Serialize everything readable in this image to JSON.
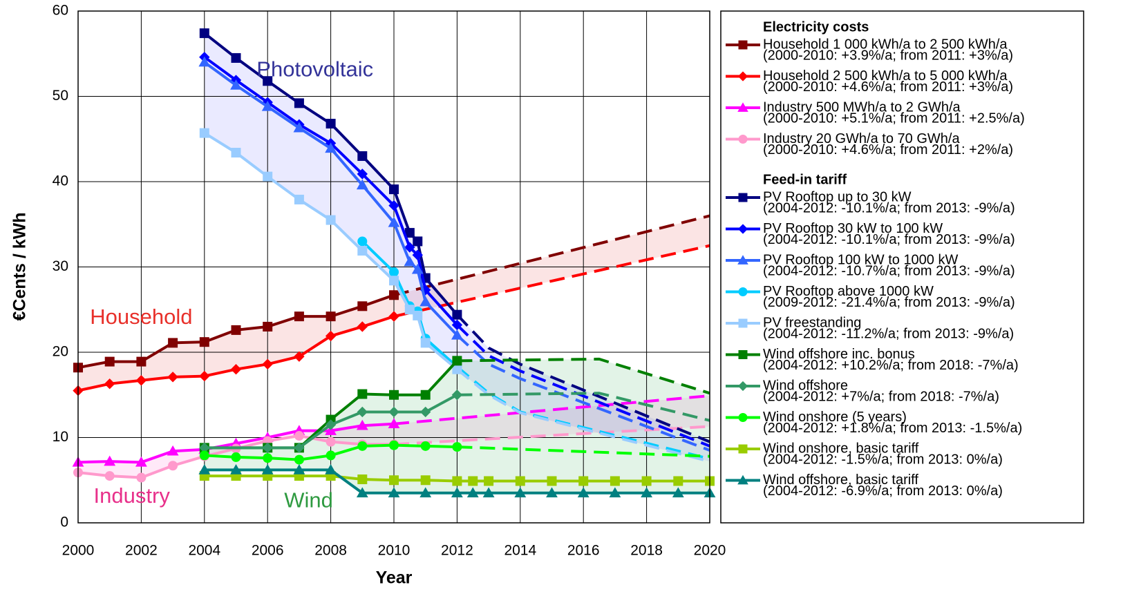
{
  "chart_data": {
    "type": "line",
    "x_label": "Year",
    "y_label": "€Cents / kWh",
    "xlim": [
      2000,
      2020
    ],
    "xticks": [
      2000,
      2002,
      2004,
      2006,
      2008,
      2010,
      2012,
      2014,
      2016,
      2018,
      2020
    ],
    "ylim": [
      0,
      60
    ],
    "yticks": [
      0,
      10,
      20,
      30,
      40,
      50,
      60
    ],
    "grid": true,
    "legend_position": "right",
    "annotations": [
      {
        "text": "Photovoltaic",
        "x": 2007.5,
        "y": 53,
        "color": "#333399"
      },
      {
        "text": "Household",
        "x": 2002,
        "y": 24,
        "color": "#e8302a"
      },
      {
        "text": "Industry",
        "x": 2001.7,
        "y": 3,
        "color": "#e8308a"
      },
      {
        "text": "Wind",
        "x": 2007.3,
        "y": 2.5,
        "color": "#2e9a40"
      }
    ],
    "bands": [
      {
        "series": [
          0,
          1
        ],
        "color": "#e04040"
      },
      {
        "series": [
          2,
          3
        ],
        "color": "#ff66cc"
      },
      {
        "series": [
          4,
          8
        ],
        "color": "#6a6aff"
      },
      {
        "series": [
          9,
          13
        ],
        "color": "#33aa55"
      }
    ],
    "legend_groups": [
      {
        "title": "Electricity costs",
        "series": [
          0,
          1,
          2,
          3
        ]
      },
      {
        "title": "Feed-in tariff",
        "series": [
          4,
          5,
          6,
          7,
          8,
          9,
          10,
          11,
          12,
          13
        ]
      }
    ],
    "series": [
      {
        "name": "Household 1 000 kWh/a to 2 500 kWh/a",
        "detail": "(2000-2010: +3.9%/a; from 2011: +3%/a)",
        "color": "#800000",
        "marker": "square",
        "dash_from": 2010,
        "x": [
          2000,
          2001,
          2002,
          2003,
          2004,
          2005,
          2006,
          2007,
          2008,
          2009,
          2010,
          2020
        ],
        "values": [
          18.2,
          18.9,
          18.9,
          21.1,
          21.2,
          22.6,
          23.0,
          24.2,
          24.2,
          25.4,
          26.7,
          36.0
        ]
      },
      {
        "name": "Household 2 500 kWh/a to 5 000 kWh/a",
        "detail": "(2000-2010: +4.6%/a; from 2011: +3%/a)",
        "color": "#ff0000",
        "marker": "diamond",
        "dash_from": 2010,
        "x": [
          2000,
          2001,
          2002,
          2003,
          2004,
          2005,
          2006,
          2007,
          2008,
          2009,
          2010,
          2020
        ],
        "values": [
          15.5,
          16.3,
          16.7,
          17.1,
          17.2,
          18.0,
          18.6,
          19.5,
          21.9,
          23.0,
          24.2,
          32.5
        ]
      },
      {
        "name": "Industry 500 MWh/a to 2 GWh/a",
        "detail": "(2000-2010: +5.1%/a; from 2011: +2.5%/a)",
        "color": "#ff00ff",
        "marker": "triangle",
        "dash_from": 2010,
        "x": [
          2000,
          2001,
          2002,
          2003,
          2004,
          2005,
          2006,
          2007,
          2008,
          2009,
          2010,
          2020
        ],
        "values": [
          7.1,
          7.2,
          7.1,
          8.4,
          8.6,
          9.3,
          10.0,
          10.8,
          10.8,
          11.4,
          11.6,
          14.9
        ]
      },
      {
        "name": "Industry 20 GWh/a to 70 GWh/a",
        "detail": "(2000-2010: +4.6%/a; from 2011: +2%/a)",
        "color": "#ff99cc",
        "marker": "circle",
        "dash_from": 2010,
        "x": [
          2000,
          2001,
          2002,
          2003,
          2004,
          2005,
          2006,
          2007,
          2008,
          2009,
          2010,
          2020
        ],
        "values": [
          5.9,
          5.5,
          5.3,
          6.7,
          7.8,
          8.7,
          9.6,
          10.2,
          9.5,
          9.2,
          9.2,
          11.3
        ]
      },
      {
        "name": "PV Rooftop up to 30 kW",
        "detail": "(2004-2012: -10.1%/a; from 2013: -9%/a)",
        "color": "#000080",
        "marker": "square",
        "dash_from": 2012,
        "x": [
          2004,
          2005,
          2006,
          2007,
          2008,
          2009,
          2010,
          2010.5,
          2010.75,
          2011,
          2012,
          2013,
          2014,
          2020
        ],
        "values": [
          57.4,
          54.5,
          51.8,
          49.2,
          46.8,
          43.0,
          39.1,
          34.0,
          33.0,
          28.7,
          24.4,
          20.5,
          18.6,
          9.5
        ]
      },
      {
        "name": "PV Rooftop 30 kW to 100 kW",
        "detail": "(2004-2012: -10.1%/a; from 2013: -9%/a)",
        "color": "#0000ff",
        "marker": "diamond",
        "dash_from": 2012,
        "x": [
          2004,
          2005,
          2006,
          2007,
          2008,
          2009,
          2010,
          2010.5,
          2010.75,
          2011,
          2012,
          2013,
          2014,
          2020
        ],
        "values": [
          54.6,
          51.9,
          49.3,
          46.7,
          44.5,
          40.9,
          37.2,
          32.3,
          31.4,
          27.3,
          23.2,
          19.6,
          17.8,
          9.0
        ]
      },
      {
        "name": "PV Rooftop 100 kW to 1000 kW",
        "detail": "(2004-2012: -10.7%/a; from 2013: -9%/a)",
        "color": "#3366ff",
        "marker": "triangle",
        "dash_from": 2012,
        "x": [
          2004,
          2005,
          2006,
          2007,
          2008,
          2009,
          2010,
          2010.5,
          2010.75,
          2011,
          2012,
          2013,
          2014,
          2020
        ],
        "values": [
          54.0,
          51.3,
          48.8,
          46.3,
          43.9,
          39.6,
          35.2,
          30.6,
          29.7,
          25.9,
          22.0,
          18.6,
          16.9,
          8.5
        ]
      },
      {
        "name": "PV Rooftop above 1000 kW",
        "detail": "(2009-2012: -21.4%/a; from 2013: -9%/a)",
        "color": "#00ccff",
        "marker": "circle",
        "dash_from": 2012,
        "x": [
          2009,
          2010,
          2010.5,
          2010.75,
          2011,
          2012,
          2013,
          2014,
          2020
        ],
        "values": [
          33.0,
          29.4,
          25.4,
          24.8,
          21.6,
          18.3,
          15.2,
          13.0,
          7.5
        ]
      },
      {
        "name": "PV freestanding",
        "detail": "(2004-2012: -11.2%/a; from 2013: -9%/a)",
        "color": "#99ccff",
        "marker": "square",
        "dash_from": 2012,
        "x": [
          2004,
          2005,
          2006,
          2007,
          2008,
          2009,
          2010,
          2010.5,
          2010.75,
          2011,
          2012,
          2013,
          2014,
          2020
        ],
        "values": [
          45.7,
          43.4,
          40.6,
          37.9,
          35.5,
          31.9,
          28.4,
          25.0,
          24.3,
          21.1,
          18.0,
          15.0,
          12.9,
          7.2
        ]
      },
      {
        "name": "Wind offshore inc. bonus",
        "detail": "(2004-2012: +10.2%/a; from 2018: -7%/a)",
        "color": "#008000",
        "marker": "square",
        "dash_from": 2012,
        "x": [
          2004,
          2006,
          2007,
          2008,
          2009,
          2010,
          2011,
          2012,
          2016.5,
          2020
        ],
        "values": [
          8.8,
          8.8,
          8.8,
          12.1,
          15.1,
          15.0,
          15.0,
          19.0,
          19.2,
          15.2
        ]
      },
      {
        "name": "Wind offshore",
        "detail": "(2004-2012: +7%/a; from 2018: -7%/a)",
        "color": "#339966",
        "marker": "diamond",
        "dash_from": 2012,
        "x": [
          2004,
          2006,
          2007,
          2008,
          2009,
          2010,
          2011,
          2012,
          2016.5,
          2020
        ],
        "values": [
          8.8,
          8.8,
          8.8,
          11.5,
          13.0,
          13.0,
          13.0,
          15.0,
          15.2,
          12.0
        ]
      },
      {
        "name": "Wind onshore (5 years)",
        "detail": "(2004-2012: +1.8%/a; from 2013: -1.5%/a)",
        "color": "#00ff00",
        "marker": "circle",
        "dash_from": 2012,
        "x": [
          2004,
          2005,
          2006,
          2007,
          2008,
          2009,
          2010,
          2011,
          2012,
          2020
        ],
        "values": [
          7.9,
          7.7,
          7.6,
          7.4,
          7.9,
          9.0,
          9.1,
          9.0,
          8.9,
          7.8
        ]
      },
      {
        "name": "Wind onshore, basic tariff",
        "detail": "(2004-2012: -1.5%/a; from 2013: 0%/a)",
        "color": "#99cc00",
        "marker": "square",
        "x": [
          2004,
          2005,
          2006,
          2007,
          2008,
          2009,
          2010,
          2011,
          2012,
          2012.5,
          2013,
          2014,
          2015,
          2016,
          2017,
          2018,
          2019,
          2020
        ],
        "values": [
          5.5,
          5.5,
          5.5,
          5.5,
          5.5,
          5.1,
          5.0,
          5.0,
          4.9,
          4.9,
          4.9,
          4.9,
          4.9,
          4.9,
          4.9,
          4.9,
          4.9,
          4.9
        ]
      },
      {
        "name": "Wind offshore, basic tariff",
        "detail": "(2004-2012: -6.9%/a; from 2013: 0%/a)",
        "color": "#008080",
        "marker": "triangle",
        "x": [
          2004,
          2005,
          2006,
          2007,
          2008,
          2009,
          2010,
          2011,
          2012,
          2012.5,
          2013,
          2014,
          2015,
          2016,
          2017,
          2018,
          2019,
          2020
        ],
        "values": [
          6.2,
          6.2,
          6.2,
          6.2,
          6.2,
          3.5,
          3.5,
          3.5,
          3.5,
          3.5,
          3.5,
          3.5,
          3.5,
          3.5,
          3.5,
          3.5,
          3.5,
          3.5
        ]
      }
    ]
  }
}
